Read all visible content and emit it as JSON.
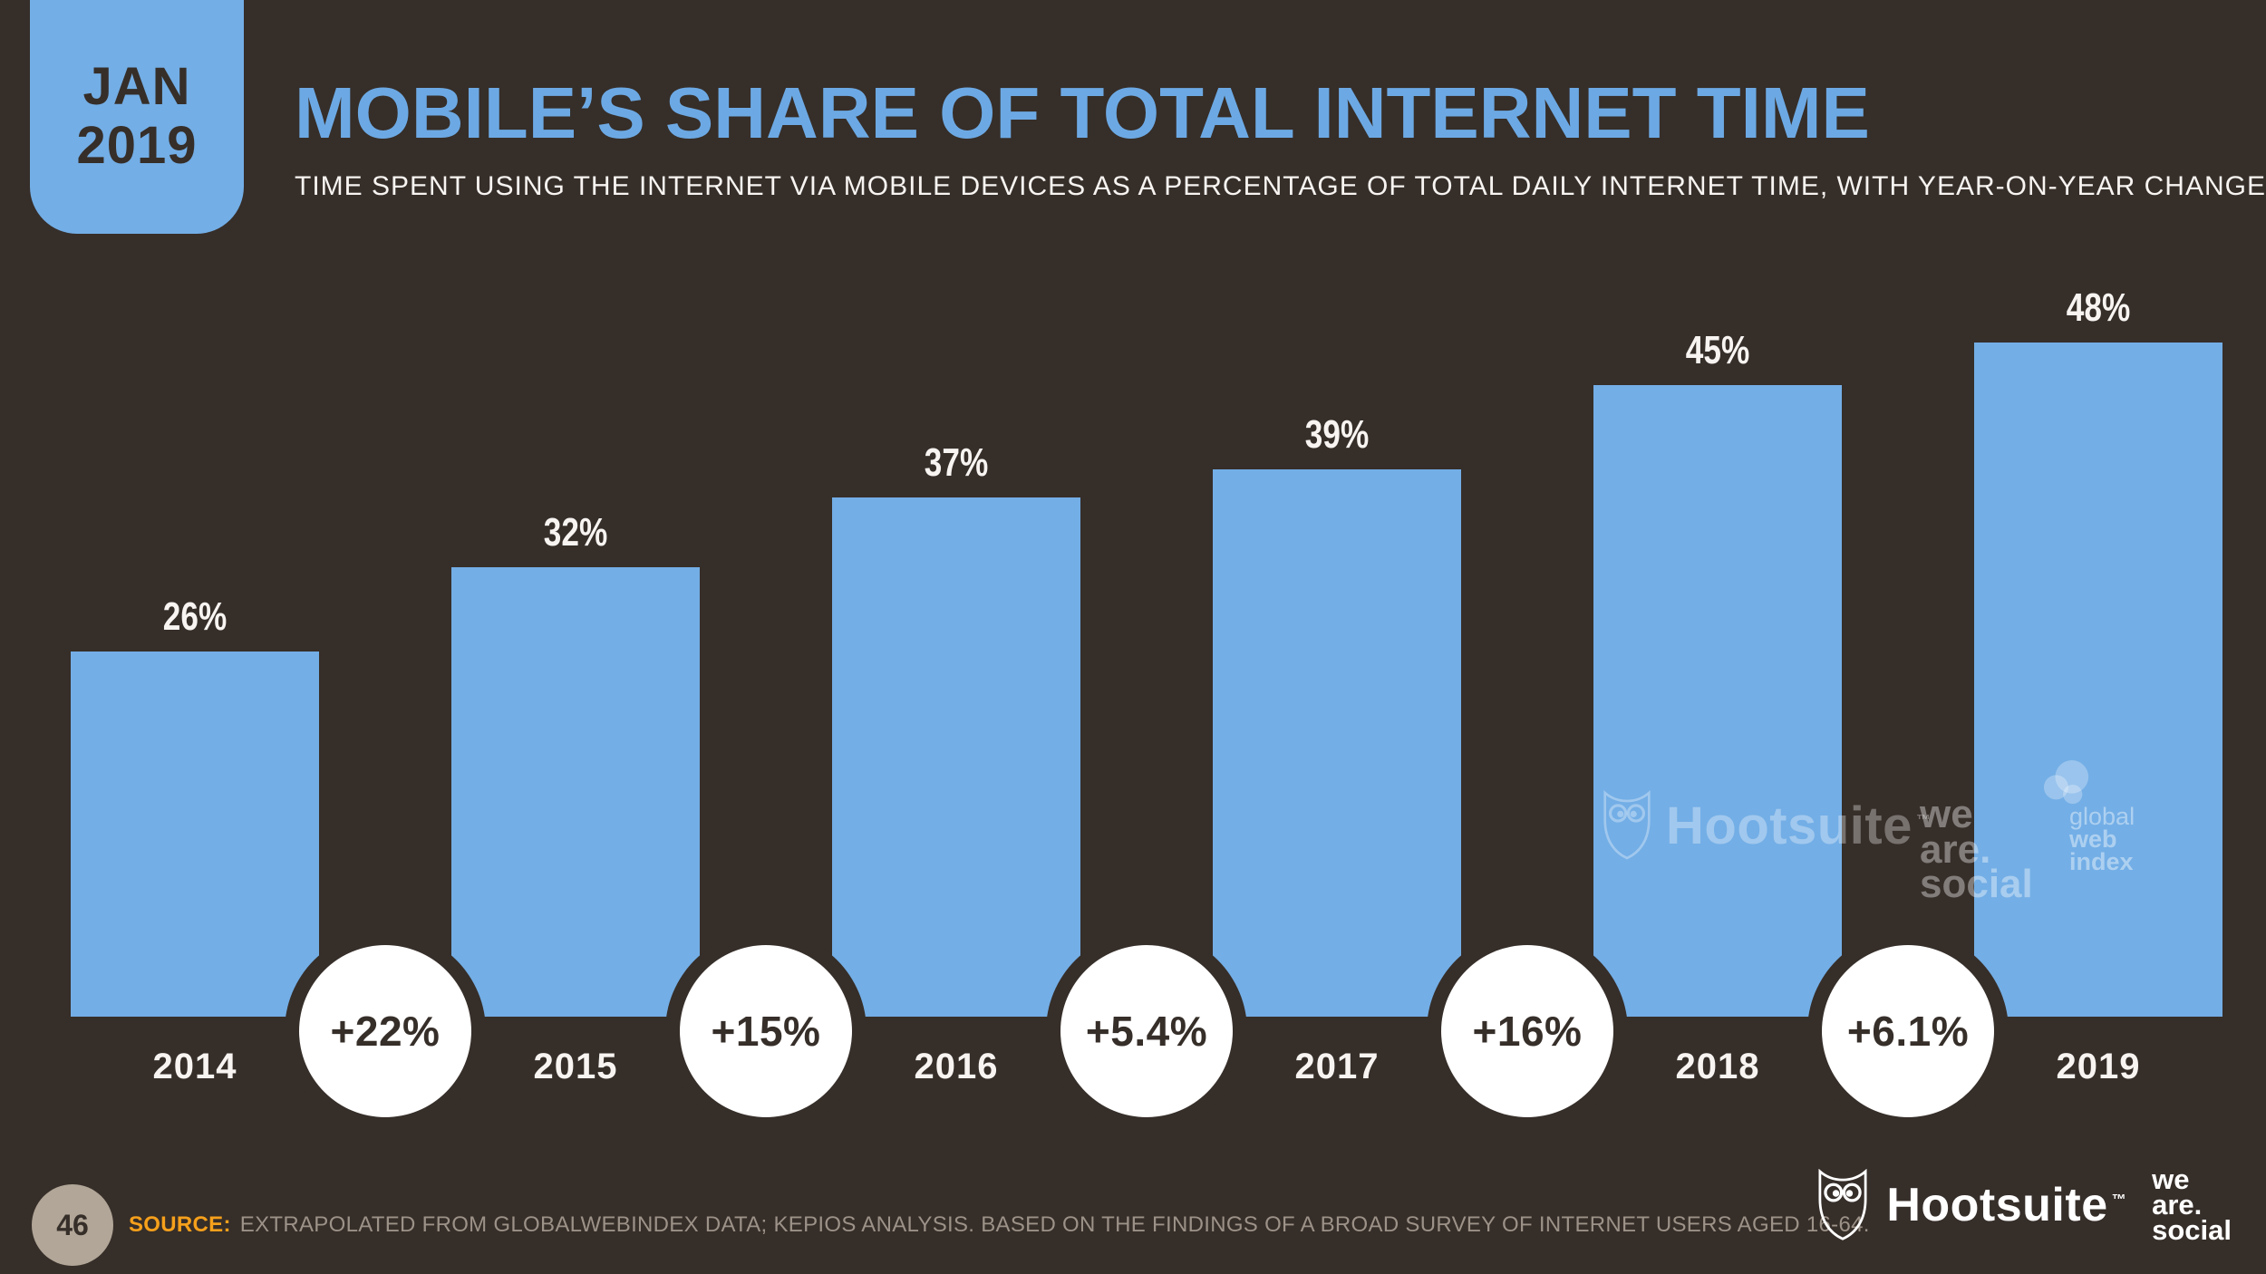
{
  "colors": {
    "background": "#362E29",
    "bar_blue": "#73AEE6",
    "title_blue": "#6CA9E4",
    "text_light": "#F7F4F1",
    "source_orange": "#F5A01B",
    "source_gray": "#9C9288",
    "page_circle_beige": "#B1A697"
  },
  "badge": {
    "month": "JAN",
    "year": "2019"
  },
  "header": {
    "title": "MOBILE’S SHARE OF TOTAL INTERNET TIME",
    "subtitle": "TIME SPENT USING THE INTERNET VIA MOBILE DEVICES AS A PERCENTAGE OF TOTAL DAILY INTERNET TIME, WITH YEAR-ON-YEAR CHANGE"
  },
  "chart_data": {
    "type": "bar",
    "title": "Mobile's share of total internet time",
    "categories": [
      "2014",
      "2015",
      "2016",
      "2017",
      "2018",
      "2019"
    ],
    "values": [
      26,
      32,
      37,
      39,
      45,
      48
    ],
    "value_labels": [
      "26%",
      "32%",
      "37%",
      "39%",
      "45%",
      "48%"
    ],
    "yoy_change_labels": [
      "+22%",
      "+15%",
      "+5.4%",
      "+16%",
      "+6.1%"
    ],
    "unit": "% of total daily internet time",
    "ylim": [
      0,
      52
    ],
    "grid": false,
    "legend": false,
    "bar_color": "#73AEE6"
  },
  "watermarks": {
    "hootsuite": "Hootsuite",
    "trademark": "™",
    "we_are_social_lines": [
      "we",
      "are.",
      "social"
    ],
    "globalwebindex_lines": [
      "global",
      "web",
      "index"
    ]
  },
  "footer": {
    "page_number": "46",
    "source_label": "SOURCE:",
    "source_text": "EXTRAPOLATED FROM GLOBALWEBINDEX DATA; KEPIOS ANALYSIS. BASED ON THE FINDINGS OF A BROAD SURVEY OF INTERNET USERS AGED 16-64.",
    "hootsuite": "Hootsuite",
    "trademark": "™",
    "we_are_social_lines": [
      "we",
      "are.",
      "social"
    ]
  }
}
